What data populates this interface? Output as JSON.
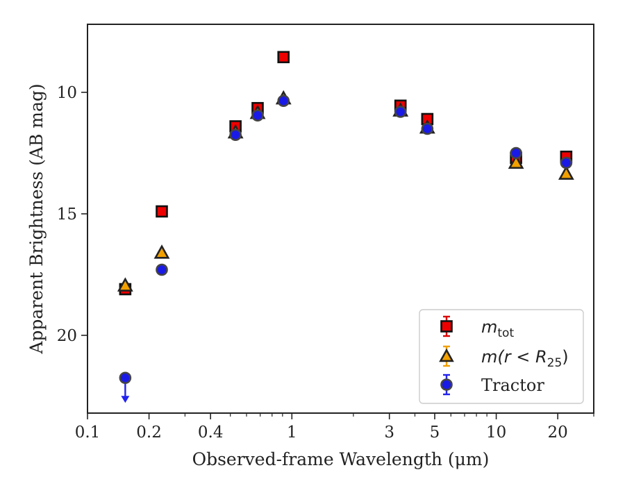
{
  "chart_data": {
    "type": "scatter",
    "xlabel": "Observed-frame Wavelength (μm)",
    "ylabel": "Apparent Brightness (AB mag)",
    "xscale": "log",
    "xlim": [
      0.1,
      30
    ],
    "ylim": [
      23.2,
      7.2
    ],
    "y_inverted": true,
    "xticks": [
      0.1,
      0.2,
      0.4,
      1,
      3,
      5,
      10,
      20
    ],
    "xtick_labels": [
      "0.1",
      "0.2",
      "0.4",
      "1",
      "3",
      "5",
      "10",
      "20"
    ],
    "yticks": [
      10,
      15,
      20
    ],
    "ytick_labels": [
      "10",
      "15",
      "20"
    ],
    "legend_position": "bottom-right",
    "grid": false,
    "series": [
      {
        "name": "m_tot",
        "legend_main": "m",
        "legend_sub": "tot",
        "marker": "square",
        "face_color": "#ee0000",
        "edge_color": "#111111",
        "errorbar_color": "#dd0000",
        "points": [
          {
            "x": 0.153,
            "y": 18.1
          },
          {
            "x": 0.231,
            "y": 14.9
          },
          {
            "x": 0.53,
            "y": 11.4
          },
          {
            "x": 0.68,
            "y": 10.65
          },
          {
            "x": 0.91,
            "y": 8.55
          },
          {
            "x": 3.4,
            "y": 10.55
          },
          {
            "x": 4.6,
            "y": 11.1
          },
          {
            "x": 12.5,
            "y": 12.7
          },
          {
            "x": 22.0,
            "y": 12.65
          }
        ]
      },
      {
        "name": "m(r < R_25)",
        "legend_main": "m(r < R",
        "legend_sub": "25",
        "legend_tail": ")",
        "marker": "triangle",
        "face_color": "#f2a000",
        "edge_color": "#222222",
        "errorbar_color": "#f2a000",
        "points": [
          {
            "x": 0.153,
            "y": 17.95
          },
          {
            "x": 0.231,
            "y": 16.6
          },
          {
            "x": 0.53,
            "y": 11.65
          },
          {
            "x": 0.68,
            "y": 10.85
          },
          {
            "x": 0.91,
            "y": 10.25
          },
          {
            "x": 3.4,
            "y": 10.75
          },
          {
            "x": 4.6,
            "y": 11.45
          },
          {
            "x": 12.5,
            "y": 12.9
          },
          {
            "x": 22.0,
            "y": 13.35
          }
        ]
      },
      {
        "name": "Tractor",
        "marker": "circle",
        "face_color": "#1a1ae6",
        "edge_color": "#444444",
        "errorbar_color": "#2222ee",
        "points": [
          {
            "x": 0.153,
            "y": 21.75,
            "upper_limit": true
          },
          {
            "x": 0.231,
            "y": 17.3
          },
          {
            "x": 0.53,
            "y": 11.75
          },
          {
            "x": 0.68,
            "y": 10.95
          },
          {
            "x": 0.91,
            "y": 10.35
          },
          {
            "x": 3.4,
            "y": 10.8
          },
          {
            "x": 4.6,
            "y": 11.5
          },
          {
            "x": 12.5,
            "y": 12.5
          },
          {
            "x": 22.0,
            "y": 12.9
          }
        ]
      }
    ]
  }
}
